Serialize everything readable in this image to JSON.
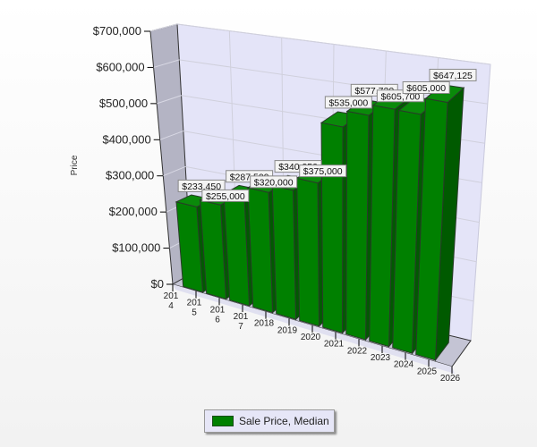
{
  "chart_data": {
    "type": "bar",
    "three_d": true,
    "title": "",
    "xlabel": "",
    "ylabel": "Price",
    "ylim": [
      0,
      700000
    ],
    "y_ticks": [
      "$0",
      "$100,000",
      "$200,000",
      "$300,000",
      "$400,000",
      "$500,000",
      "$600,000",
      "$700,000"
    ],
    "x_ticks": [
      [
        "201",
        "4"
      ],
      [
        "201",
        "5"
      ],
      [
        "201",
        "6"
      ],
      [
        "201",
        "7"
      ],
      [
        "2018"
      ],
      [
        "2019"
      ],
      [
        "2020"
      ],
      [
        "2021"
      ],
      [
        "2022"
      ],
      [
        "2023"
      ],
      [
        "2024"
      ],
      [
        "2025"
      ],
      [
        "2026"
      ]
    ],
    "series": [
      {
        "name": "Sale Price, Median",
        "color": "#008000",
        "values": [
          233450,
          255000,
          287500,
          320000,
          340950,
          375000,
          535000,
          577720,
          605700,
          605000,
          647125
        ],
        "labels": [
          "$233,450",
          "$255,000",
          "$287,500",
          "$320,000",
          "$340,950",
          "$375,000",
          "$535,000",
          "$577,720",
          "$605,700",
          "$605,000",
          "$647,125"
        ]
      }
    ],
    "grid": true,
    "legend": "bottom"
  }
}
